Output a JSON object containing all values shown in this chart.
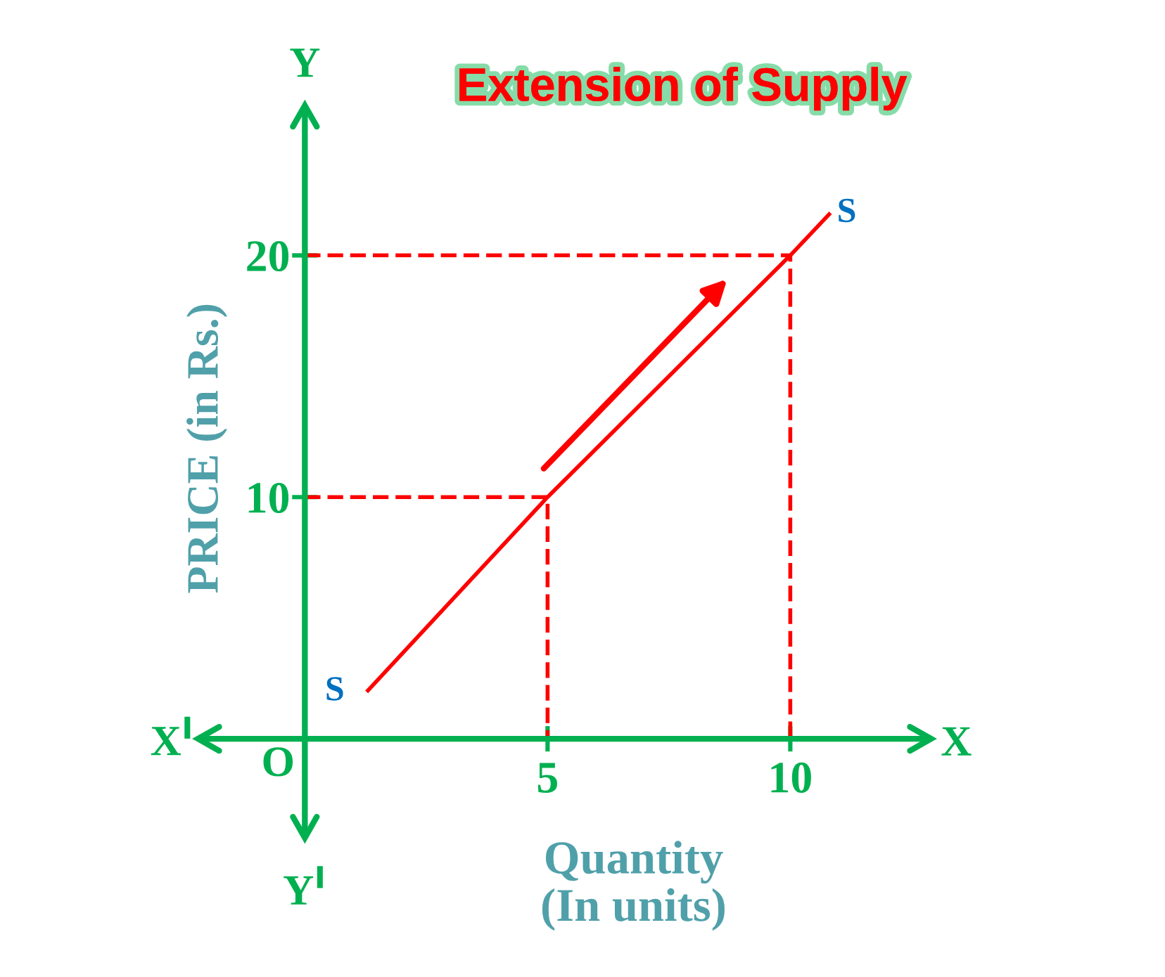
{
  "chart_data": {
    "type": "line",
    "title": "Extension of Supply",
    "xlabel": "Quantity\n(In units)",
    "ylabel": "PRICE (in Rs.)",
    "series": [
      {
        "color": "#ff0000",
        "x": [
          1.3,
          5,
          10,
          10.8
        ],
        "values": [
          2.0,
          10,
          20,
          21.7
        ]
      },
      {
        "color": "#ff0000",
        "line_style": "dashed",
        "x": [
          0,
          5,
          5
        ],
        "values": [
          10,
          10,
          0
        ]
      },
      {
        "color": "#ff0000",
        "line_style": "dashed",
        "x": [
          0,
          10,
          10
        ],
        "values": [
          20,
          20,
          0
        ]
      }
    ],
    "xlim": [
      -2.2,
      12.9
    ],
    "ylim": [
      -4.1,
      26.2
    ],
    "xticks": [
      5,
      10
    ],
    "yticks": [
      10,
      20
    ],
    "annotations": [
      "Y",
      "X",
      "X$^{I}$",
      "Y$^{I}$",
      "O",
      {
        "text": "S",
        "x": 1.3,
        "y": 2.0
      },
      {
        "text": "S",
        "x": 10.8,
        "y": 21.7
      }
    ]
  }
}
